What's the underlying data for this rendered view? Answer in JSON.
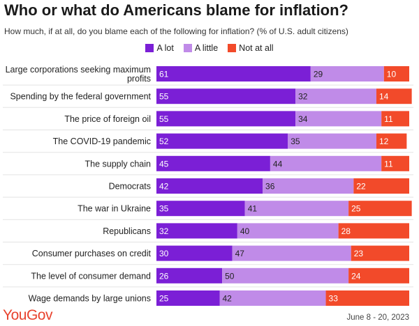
{
  "title": "Who or what do Americans blame for inflation?",
  "subtitle": "How much, if at all, do you blame each of the following for inflation? (% of U.S. adult citizens)",
  "brand": "YouGov",
  "date_range": "June 8 - 20, 2023",
  "colors": {
    "a_lot": "#7b1fd6",
    "a_little": "#c08be8",
    "not_at_all": "#f24a2a",
    "brand": "#e8432e"
  },
  "chart_data": {
    "type": "bar",
    "orientation": "horizontal",
    "stacked": true,
    "legend_position": "top-center",
    "categories": [
      "Large corporations seeking maximum profits",
      "Spending by the federal government",
      "The price of foreign oil",
      "The COVID-19 pandemic",
      "The supply chain",
      "Democrats",
      "The war in Ukraine",
      "Republicans",
      "Consumer purchases on credit",
      "The level of consumer demand",
      "Wage demands by large unions"
    ],
    "series": [
      {
        "name": "A lot",
        "values": [
          61,
          55,
          55,
          52,
          45,
          42,
          35,
          32,
          30,
          26,
          25
        ]
      },
      {
        "name": "A little",
        "values": [
          29,
          32,
          34,
          35,
          44,
          36,
          41,
          40,
          47,
          50,
          42
        ]
      },
      {
        "name": "Not at all",
        "values": [
          10,
          14,
          11,
          12,
          11,
          22,
          25,
          28,
          23,
          24,
          33
        ]
      }
    ],
    "xlim": [
      0,
      100
    ]
  }
}
